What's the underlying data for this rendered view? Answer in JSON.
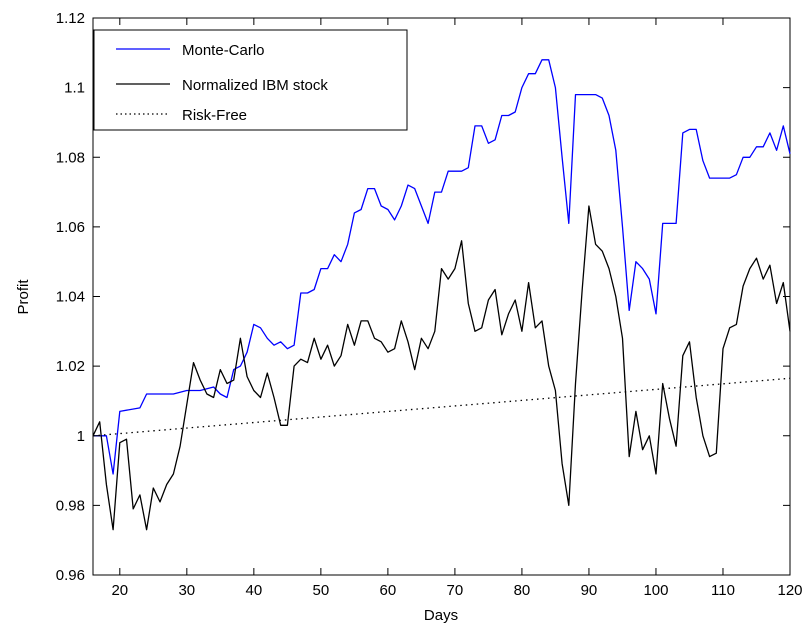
{
  "chart_data": {
    "type": "line",
    "title": "",
    "xlabel": "Days",
    "ylabel": "Profit",
    "xlim": [
      16,
      120
    ],
    "ylim": [
      0.96,
      1.12
    ],
    "xticks": [
      20,
      30,
      40,
      50,
      60,
      70,
      80,
      90,
      100,
      110,
      120
    ],
    "yticks": [
      0.96,
      0.98,
      1.0,
      1.02,
      1.04,
      1.06,
      1.08,
      1.1,
      1.12
    ],
    "xtick_labels": [
      "20",
      "30",
      "40",
      "50",
      "60",
      "70",
      "80",
      "90",
      "100",
      "110",
      "120"
    ],
    "ytick_labels": [
      "0.96",
      "0.98",
      "1",
      "1.02",
      "1.04",
      "1.06",
      "1.08",
      "1.1",
      "1.12"
    ],
    "grid": false,
    "legend_position": "top-left",
    "series": [
      {
        "name": "Monte-Carlo",
        "color": "#0000ff",
        "style": "solid",
        "x": [
          16,
          18,
          19,
          20,
          23,
          24,
          28,
          30,
          32,
          34,
          35,
          36,
          37,
          38,
          39,
          40,
          41,
          42,
          43,
          44,
          45,
          46,
          47,
          48,
          49,
          50,
          51,
          52,
          53,
          54,
          55,
          56,
          57,
          58,
          59,
          60,
          61,
          62,
          63,
          64,
          65,
          66,
          67,
          68,
          69,
          70,
          71,
          72,
          73,
          74,
          75,
          76,
          77,
          78,
          79,
          80,
          81,
          82,
          83,
          84,
          85,
          86,
          87,
          88,
          89,
          90,
          91,
          92,
          93,
          94,
          95,
          96,
          97,
          98,
          99,
          100,
          101,
          102,
          103,
          104,
          105,
          106,
          107,
          108,
          109,
          110,
          111,
          112,
          113,
          114,
          115,
          116,
          117,
          118,
          119,
          120
        ],
        "y": [
          1.0,
          1.0,
          0.989,
          1.007,
          1.008,
          1.012,
          1.012,
          1.013,
          1.013,
          1.014,
          1.012,
          1.011,
          1.019,
          1.02,
          1.024,
          1.032,
          1.031,
          1.028,
          1.026,
          1.027,
          1.025,
          1.026,
          1.041,
          1.041,
          1.042,
          1.048,
          1.048,
          1.052,
          1.05,
          1.055,
          1.064,
          1.065,
          1.071,
          1.071,
          1.066,
          1.065,
          1.062,
          1.066,
          1.072,
          1.071,
          1.066,
          1.061,
          1.07,
          1.07,
          1.076,
          1.076,
          1.076,
          1.077,
          1.089,
          1.089,
          1.084,
          1.085,
          1.092,
          1.092,
          1.093,
          1.1,
          1.104,
          1.104,
          1.108,
          1.108,
          1.1,
          1.08,
          1.061,
          1.098,
          1.098,
          1.098,
          1.098,
          1.097,
          1.092,
          1.082,
          1.06,
          1.036,
          1.05,
          1.048,
          1.045,
          1.035,
          1.061,
          1.061,
          1.061,
          1.087,
          1.088,
          1.088,
          1.079,
          1.074,
          1.074,
          1.074,
          1.074,
          1.075,
          1.08,
          1.08,
          1.083,
          1.083,
          1.087,
          1.082,
          1.089,
          1.081
        ]
      },
      {
        "name": "Normalized IBM stock",
        "color": "#000000",
        "style": "solid",
        "x": [
          16,
          17,
          18,
          19,
          20,
          21,
          22,
          23,
          24,
          25,
          26,
          27,
          28,
          29,
          30,
          31,
          32,
          33,
          34,
          35,
          36,
          37,
          38,
          39,
          40,
          41,
          42,
          43,
          44,
          45,
          46,
          47,
          48,
          49,
          50,
          51,
          52,
          53,
          54,
          55,
          56,
          57,
          58,
          59,
          60,
          61,
          62,
          63,
          64,
          65,
          66,
          67,
          68,
          69,
          70,
          71,
          72,
          73,
          74,
          75,
          76,
          77,
          78,
          79,
          80,
          81,
          82,
          83,
          84,
          85,
          86,
          87,
          88,
          89,
          90,
          91,
          92,
          93,
          94,
          95,
          96,
          97,
          98,
          99,
          100,
          101,
          102,
          103,
          104,
          105,
          106,
          107,
          108,
          109,
          110,
          111,
          112,
          113,
          114,
          115,
          116,
          117,
          118,
          119,
          120
        ],
        "y": [
          1.0,
          1.004,
          0.986,
          0.973,
          0.998,
          0.999,
          0.979,
          0.983,
          0.973,
          0.985,
          0.981,
          0.986,
          0.989,
          0.997,
          1.009,
          1.021,
          1.016,
          1.012,
          1.011,
          1.019,
          1.015,
          1.016,
          1.028,
          1.017,
          1.013,
          1.011,
          1.018,
          1.011,
          1.003,
          1.003,
          1.02,
          1.022,
          1.021,
          1.028,
          1.022,
          1.026,
          1.02,
          1.023,
          1.032,
          1.026,
          1.033,
          1.033,
          1.028,
          1.027,
          1.024,
          1.025,
          1.033,
          1.027,
          1.019,
          1.028,
          1.025,
          1.03,
          1.048,
          1.045,
          1.048,
          1.056,
          1.038,
          1.03,
          1.031,
          1.039,
          1.042,
          1.029,
          1.035,
          1.039,
          1.03,
          1.044,
          1.031,
          1.033,
          1.02,
          1.013,
          0.992,
          0.98,
          1.015,
          1.042,
          1.066,
          1.055,
          1.053,
          1.048,
          1.04,
          1.028,
          0.994,
          1.007,
          0.996,
          1.0,
          0.989,
          1.015,
          1.005,
          0.997,
          1.023,
          1.027,
          1.011,
          1.0,
          0.994,
          0.995,
          1.025,
          1.031,
          1.032,
          1.043,
          1.048,
          1.051,
          1.045,
          1.049,
          1.038,
          1.044,
          1.03
        ]
      },
      {
        "name": "Risk-Free",
        "color": "#000000",
        "style": "dotted",
        "x": [
          16,
          120
        ],
        "y": [
          1.0,
          1.0165
        ]
      }
    ]
  }
}
